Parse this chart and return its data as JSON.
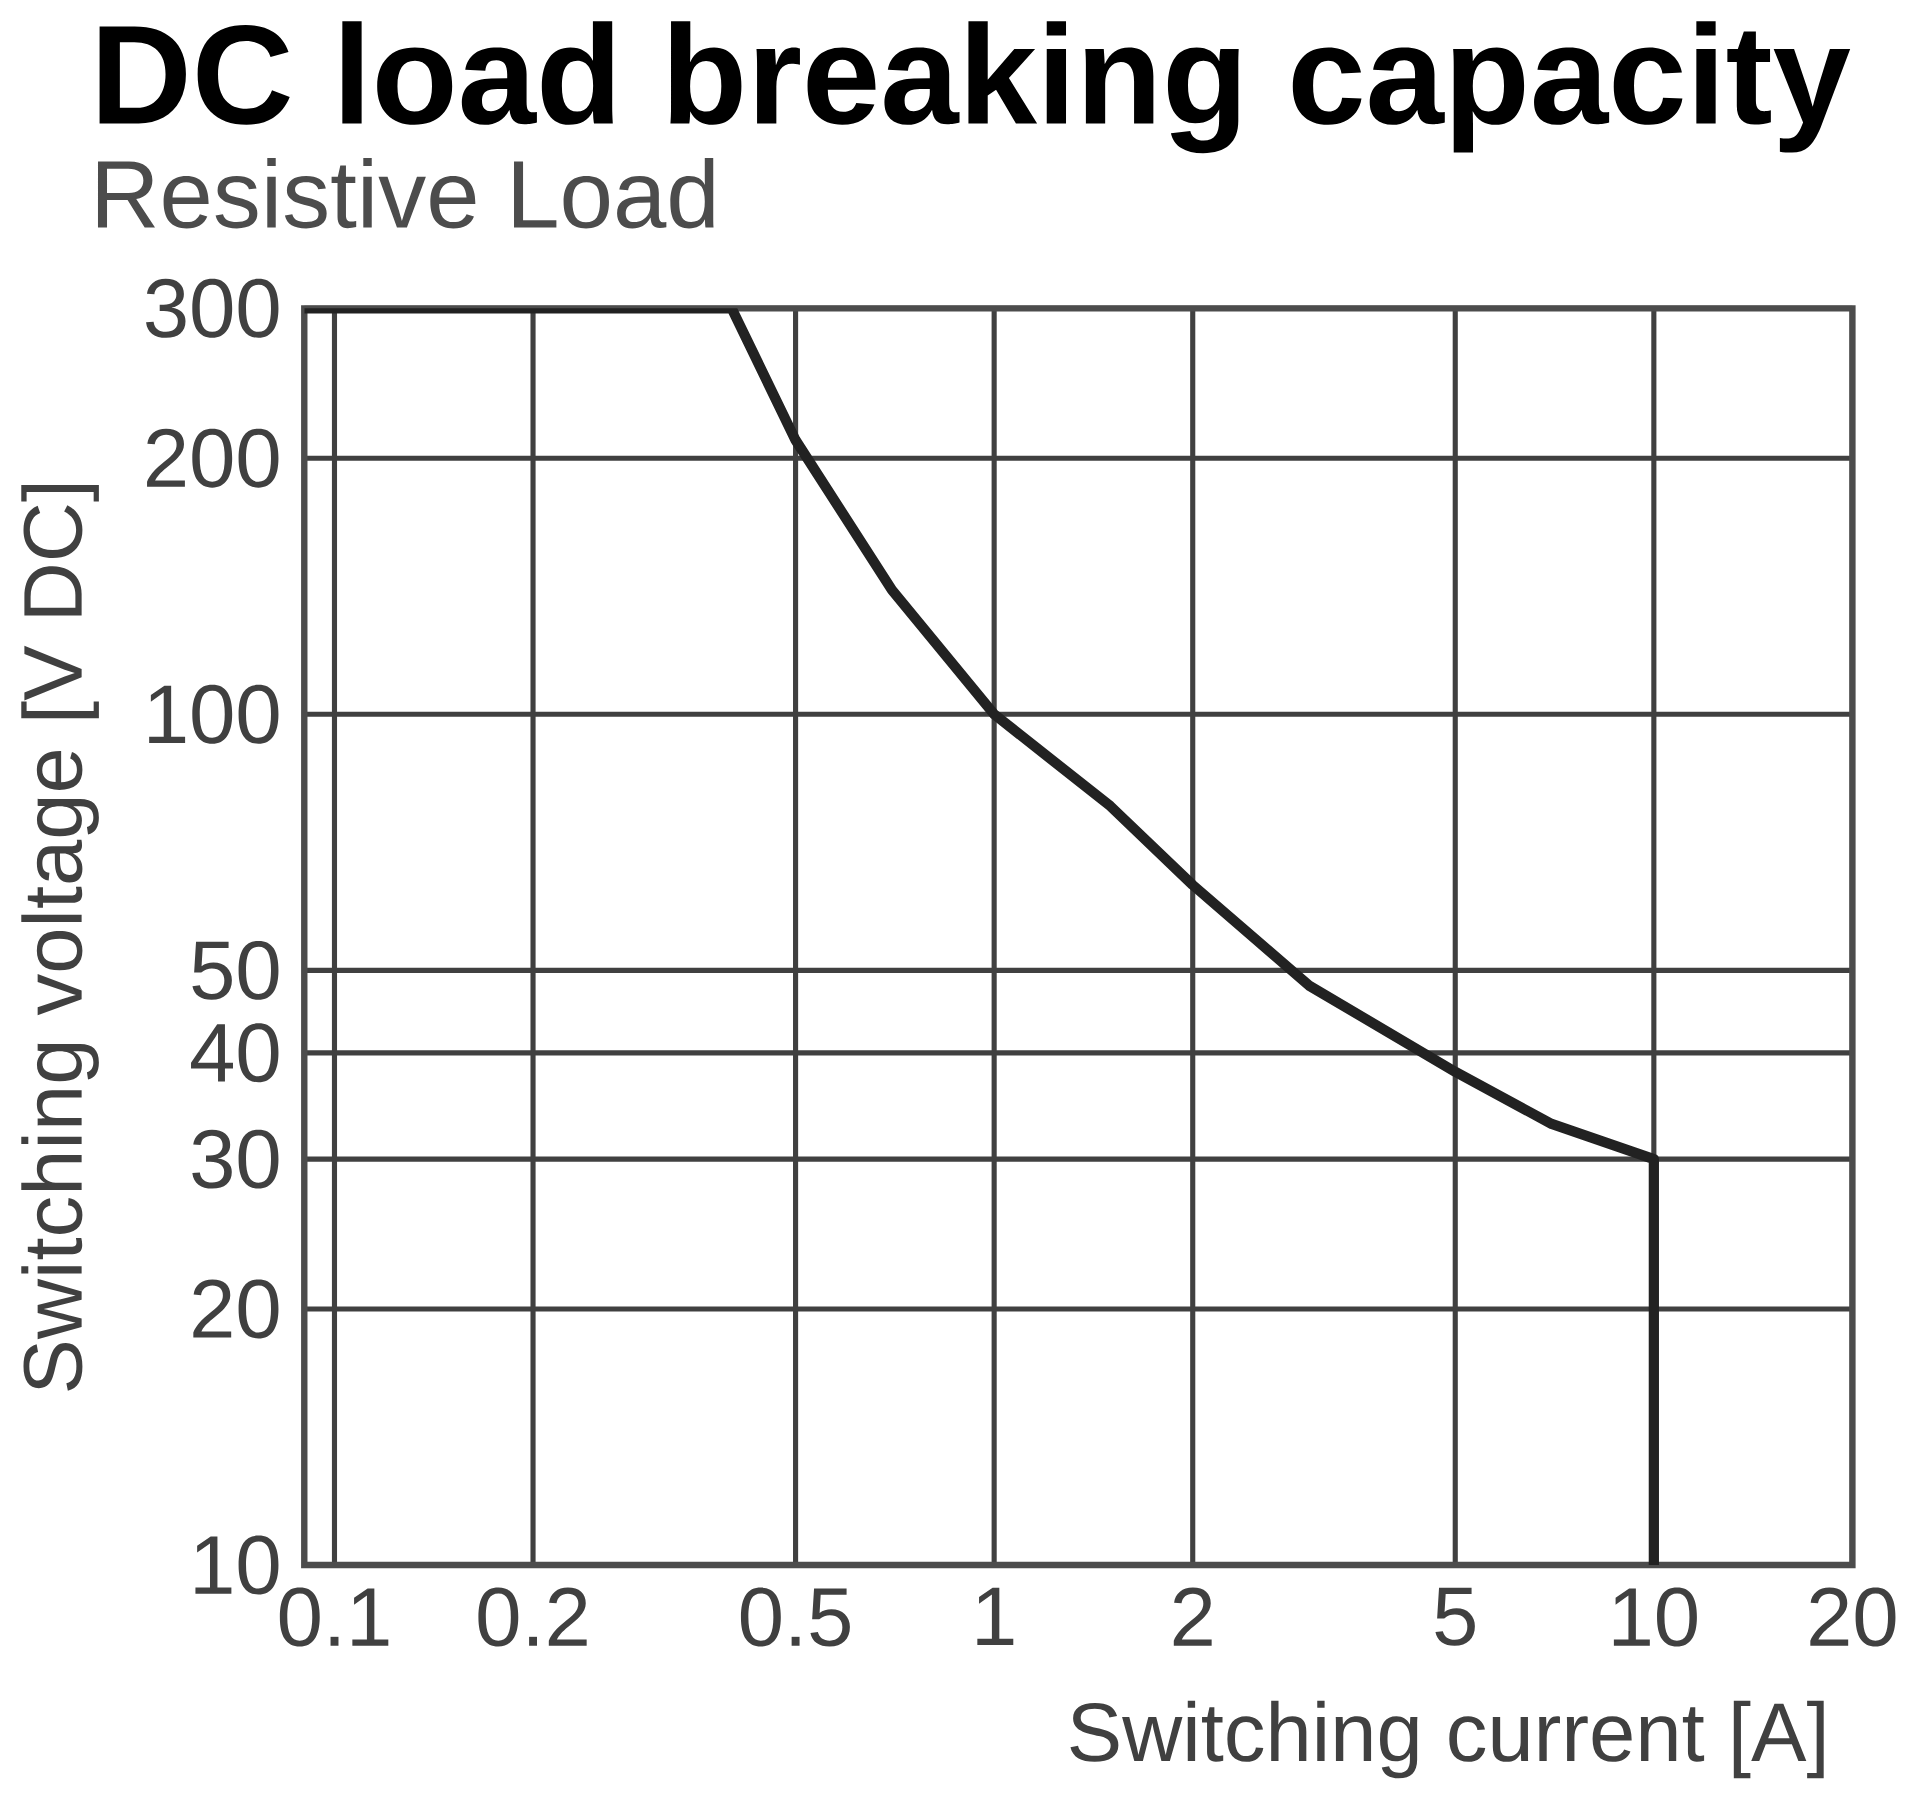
{
  "chart_data": {
    "type": "line",
    "title": "DC load breaking capacity",
    "subtitle": "Resistive Load",
    "xlabel": "Switching current [A]",
    "ylabel": "Switching voltage [V DC]",
    "log": "xy",
    "grid": true,
    "xlim": [
      0.09,
      20
    ],
    "ylim": [
      10,
      300
    ],
    "xticks": [
      0.1,
      0.2,
      0.5,
      1,
      2,
      5,
      10,
      20
    ],
    "yticks": [
      10,
      20,
      30,
      40,
      50,
      100,
      200,
      300
    ],
    "series": [
      {
        "color": "#222222",
        "x": [
          0.09,
          0.4,
          0.5,
          0.7,
          1,
          1.5,
          2,
          3,
          5,
          7,
          10,
          10
        ],
        "values": [
          300,
          300,
          210,
          140,
          100,
          78,
          63,
          48,
          38,
          33,
          30,
          10
        ]
      }
    ]
  }
}
